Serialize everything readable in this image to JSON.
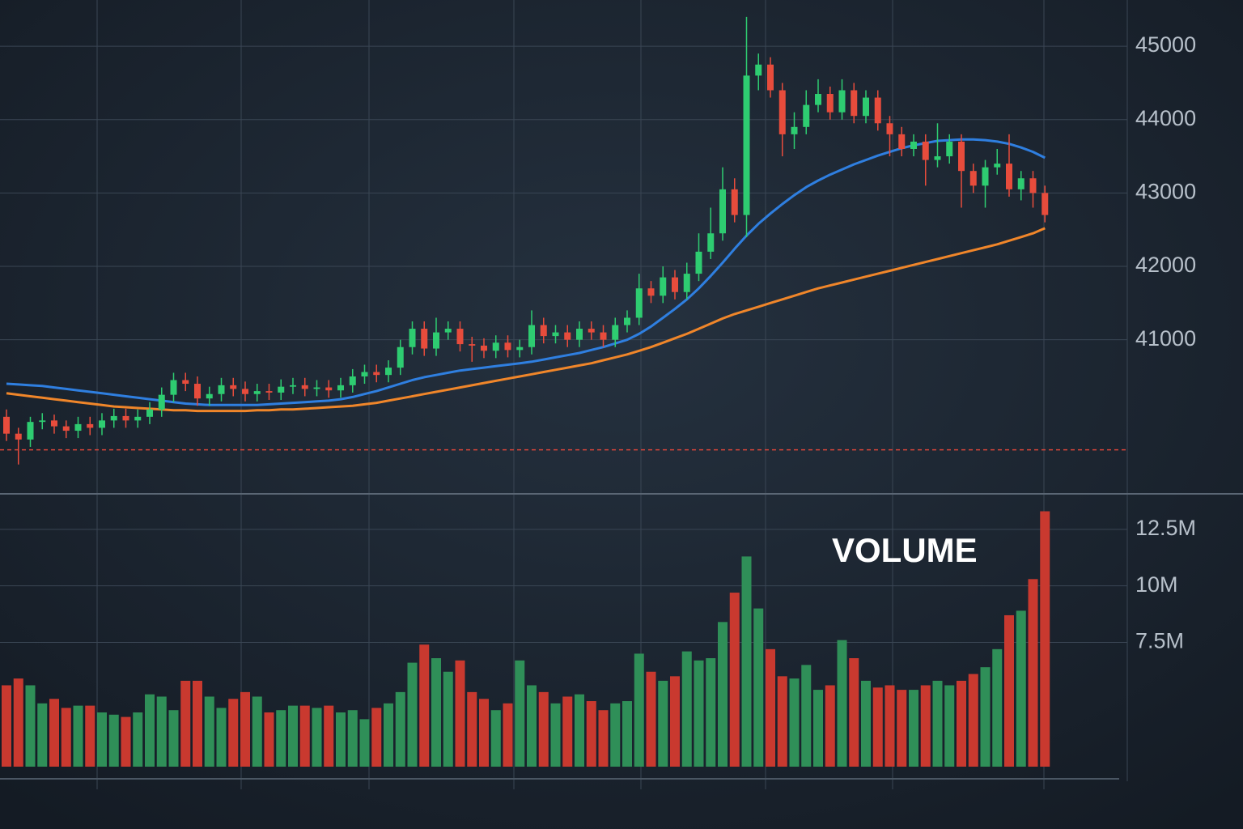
{
  "chart_data": [
    {
      "type": "candlestick",
      "open": [
        39950,
        39720,
        39640,
        39880,
        39900,
        39820,
        39760,
        39850,
        39800,
        39900,
        39960,
        39900,
        39950,
        40050,
        40250,
        40450,
        40400,
        40200,
        40260,
        40380,
        40330,
        40260,
        40300,
        40280,
        40360,
        40380,
        40330,
        40350,
        40310,
        40380,
        40500,
        40560,
        40520,
        40620,
        40900,
        41150,
        40880,
        41100,
        41150,
        40940,
        40920,
        40850,
        40960,
        40860,
        40900,
        41200,
        41050,
        41100,
        41000,
        41150,
        41100,
        41000,
        41200,
        41300,
        41700,
        41600,
        41850,
        41650,
        41900,
        42200,
        42450,
        43050,
        42700,
        44600,
        44750,
        44400,
        43800,
        43900,
        44200,
        44350,
        44100,
        44400,
        44050,
        44300,
        43950,
        43800,
        43600,
        43700,
        43450,
        43500,
        43700,
        43300,
        43100,
        43350,
        43400,
        43050,
        43200,
        43000
      ],
      "high": [
        40050,
        39800,
        39950,
        40000,
        39980,
        39900,
        39950,
        39950,
        40000,
        40060,
        40060,
        40050,
        40150,
        40350,
        40550,
        40550,
        40500,
        40360,
        40480,
        40480,
        40430,
        40400,
        40400,
        40460,
        40480,
        40480,
        40450,
        40450,
        40480,
        40600,
        40660,
        40660,
        40720,
        41000,
        41250,
        41250,
        41300,
        41250,
        41250,
        41040,
        41020,
        41060,
        41060,
        41000,
        41400,
        41300,
        41200,
        41200,
        41250,
        41250,
        41200,
        41300,
        41400,
        41900,
        41800,
        42000,
        41950,
        42050,
        42450,
        42800,
        43350,
        43200,
        45400,
        44900,
        44850,
        44500,
        44100,
        44400,
        44550,
        44450,
        44550,
        44500,
        44400,
        44400,
        44050,
        43900,
        43800,
        43800,
        43950,
        43800,
        43800,
        43400,
        43450,
        43600,
        43800,
        43300,
        43300,
        43100
      ],
      "low": [
        39620,
        39300,
        39540,
        39780,
        39720,
        39660,
        39660,
        39700,
        39700,
        39800,
        39800,
        39800,
        39850,
        39950,
        40150,
        40300,
        40100,
        40100,
        40160,
        40230,
        40160,
        40160,
        40180,
        40180,
        40260,
        40230,
        40230,
        40210,
        40210,
        40280,
        40400,
        40420,
        40420,
        40520,
        40800,
        40780,
        40780,
        41000,
        40840,
        40700,
        40750,
        40750,
        40760,
        40760,
        40800,
        40950,
        40950,
        40900,
        40900,
        41000,
        40900,
        40900,
        41100,
        41200,
        41500,
        41500,
        41550,
        41550,
        41800,
        42100,
        42350,
        42600,
        42400,
        44400,
        44300,
        43500,
        43600,
        43800,
        44100,
        44000,
        44000,
        43950,
        43950,
        43850,
        43500,
        43500,
        43500,
        43100,
        43350,
        43400,
        42800,
        43000,
        42800,
        43250,
        42950,
        42900,
        42800,
        42600
      ],
      "close": [
        39720,
        39640,
        39880,
        39900,
        39820,
        39760,
        39850,
        39800,
        39900,
        39960,
        39900,
        39950,
        40050,
        40250,
        40450,
        40400,
        40200,
        40260,
        40380,
        40330,
        40260,
        40300,
        40280,
        40360,
        40380,
        40330,
        40350,
        40310,
        40380,
        40500,
        40560,
        40520,
        40620,
        40900,
        41150,
        40880,
        41100,
        41150,
        40940,
        40920,
        40850,
        40960,
        40860,
        40900,
        41200,
        41050,
        41100,
        41000,
        41150,
        41100,
        41000,
        41200,
        41300,
        41700,
        41600,
        41850,
        41650,
        41900,
        42200,
        42450,
        43050,
        42700,
        44600,
        44750,
        44400,
        43800,
        43900,
        44200,
        44350,
        44100,
        44400,
        44050,
        44300,
        43950,
        43800,
        43600,
        43700,
        43450,
        43500,
        43700,
        43300,
        43100,
        43350,
        43400,
        43050,
        43200,
        43000,
        42700
      ],
      "up_color": "#2ecc71",
      "down_color": "#e74c3c",
      "lines": [
        {
          "color": "#2f7fe0",
          "values": [
            40400,
            40390,
            40380,
            40370,
            40350,
            40330,
            40310,
            40290,
            40270,
            40250,
            40230,
            40210,
            40190,
            40170,
            40150,
            40130,
            40120,
            40110,
            40110,
            40110,
            40110,
            40110,
            40120,
            40130,
            40140,
            40150,
            40160,
            40170,
            40190,
            40220,
            40260,
            40300,
            40350,
            40400,
            40450,
            40490,
            40520,
            40550,
            40580,
            40600,
            40620,
            40640,
            40660,
            40680,
            40700,
            40730,
            40760,
            40790,
            40820,
            40860,
            40900,
            40950,
            41000,
            41080,
            41180,
            41300,
            41420,
            41550,
            41700,
            41870,
            42050,
            42240,
            42420,
            42580,
            42720,
            42850,
            42970,
            43080,
            43170,
            43250,
            43320,
            43390,
            43450,
            43510,
            43560,
            43610,
            43650,
            43680,
            43710,
            43720,
            43730,
            43730,
            43720,
            43700,
            43670,
            43620,
            43560,
            43480
          ]
        },
        {
          "color": "#f0862a",
          "values": [
            40270,
            40250,
            40230,
            40210,
            40190,
            40170,
            40150,
            40130,
            40110,
            40090,
            40080,
            40070,
            40060,
            40050,
            40040,
            40040,
            40030,
            40030,
            40030,
            40030,
            40030,
            40040,
            40040,
            40050,
            40050,
            40060,
            40070,
            40080,
            40090,
            40100,
            40120,
            40140,
            40170,
            40200,
            40230,
            40260,
            40290,
            40320,
            40350,
            40380,
            40410,
            40440,
            40470,
            40500,
            40530,
            40560,
            40590,
            40620,
            40650,
            40680,
            40720,
            40760,
            40800,
            40850,
            40900,
            40960,
            41020,
            41080,
            41150,
            41220,
            41290,
            41350,
            41400,
            41450,
            41500,
            41550,
            41600,
            41650,
            41700,
            41740,
            41780,
            41820,
            41860,
            41900,
            41940,
            41980,
            42020,
            42060,
            42100,
            42140,
            42180,
            42220,
            42260,
            42300,
            42350,
            42400,
            42450,
            42520
          ]
        }
      ],
      "hline": {
        "value": 39500,
        "color": "#d9453a"
      },
      "ylim": [
        38900,
        45630
      ],
      "yticks": [
        41000,
        42000,
        43000,
        44000,
        45000
      ],
      "grid": true
    },
    {
      "type": "bar",
      "title": "VOLUME",
      "values": [
        5600000,
        5900000,
        5600000,
        4800000,
        5000000,
        4600000,
        4700000,
        4700000,
        4400000,
        4300000,
        4200000,
        4400000,
        5200000,
        5100000,
        4500000,
        5800000,
        5800000,
        5100000,
        4600000,
        5000000,
        5300000,
        5100000,
        4400000,
        4500000,
        4700000,
        4700000,
        4600000,
        4700000,
        4400000,
        4500000,
        4100000,
        4600000,
        4800000,
        5300000,
        6600000,
        7400000,
        6800000,
        6200000,
        6700000,
        5300000,
        5000000,
        4500000,
        4800000,
        6700000,
        5600000,
        5300000,
        4800000,
        5100000,
        5200000,
        4900000,
        4500000,
        4800000,
        4900000,
        7000000,
        6200000,
        5800000,
        6000000,
        7100000,
        6700000,
        6800000,
        8400000,
        9700000,
        11300000,
        9000000,
        7200000,
        6000000,
        5900000,
        6500000,
        5400000,
        5600000,
        7600000,
        6800000,
        5800000,
        5500000,
        5600000,
        5400000,
        5400000,
        5600000,
        5800000,
        5600000,
        5800000,
        6100000,
        6400000,
        7200000,
        8700000,
        8900000,
        10300000,
        13300000
      ],
      "up_color": "#2f8f58",
      "down_color": "#c9392f",
      "ylim": [
        2000000,
        14000000
      ],
      "yticks": [
        {
          "value": 7500000,
          "label": "7.5M"
        },
        {
          "value": 10000000,
          "label": "10M"
        },
        {
          "value": 12500000,
          "label": "12.5M"
        }
      ],
      "grid": true
    }
  ]
}
